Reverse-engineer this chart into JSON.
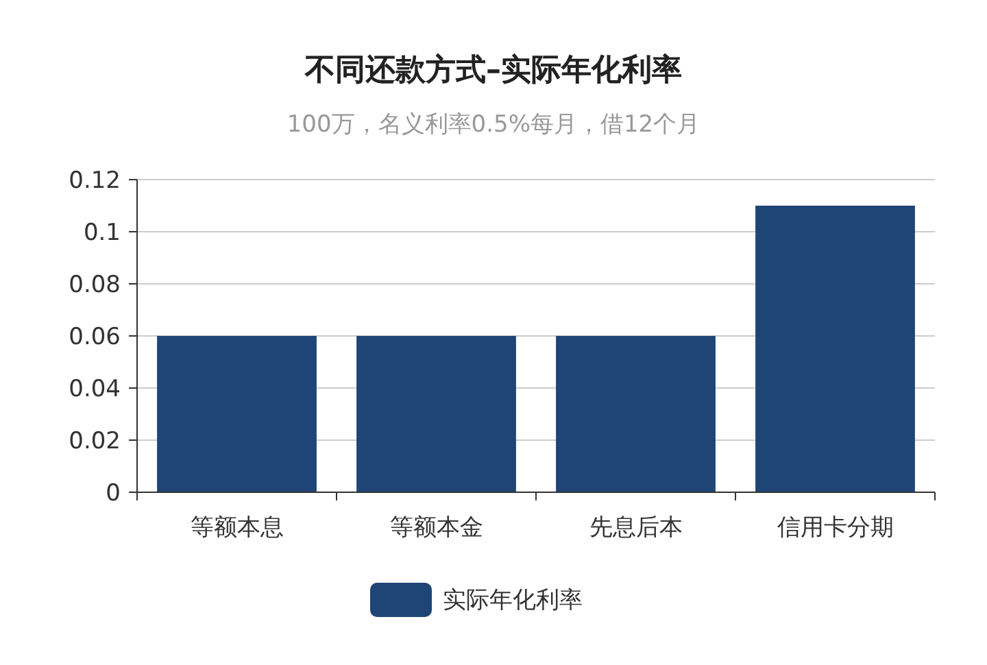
{
  "chart_data": {
    "type": "bar",
    "title": "不同还款方式–实际年化利率",
    "subtitle": "100万，名义利率0.5%每月，借12个月",
    "categories": [
      "等额本息",
      "等额本金",
      "先息后本",
      "信用卡分期"
    ],
    "series": [
      {
        "name": "实际年化利率",
        "color": "#1f4577",
        "values": [
          0.06,
          0.06,
          0.06,
          0.11
        ]
      }
    ],
    "ylim": [
      0,
      0.12
    ],
    "yticks": [
      0,
      0.02,
      0.04,
      0.06,
      0.08,
      0.1,
      0.12
    ],
    "grid": "y",
    "legend": "bottom"
  }
}
